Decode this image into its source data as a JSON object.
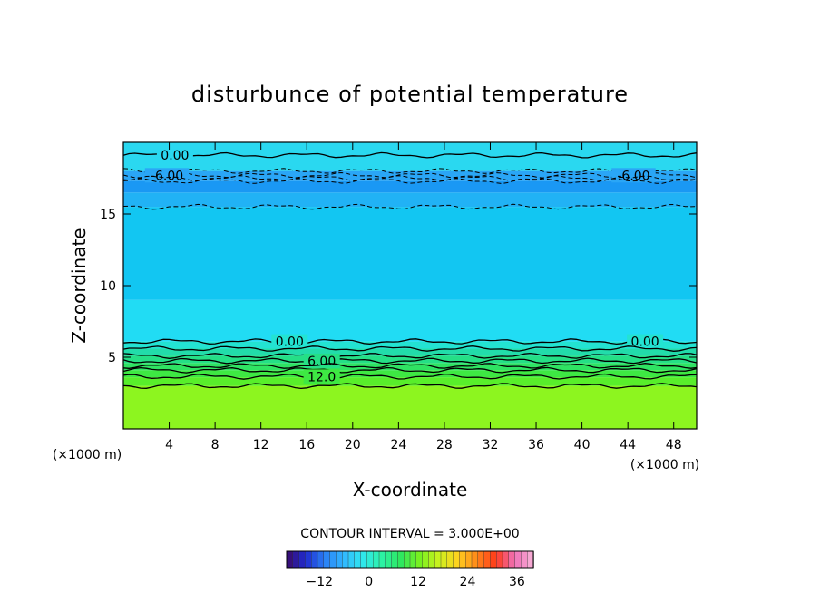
{
  "chart_data": {
    "type": "heatmap",
    "title": "disturbunce of potential temperature",
    "xlabel": "X-coordinate",
    "ylabel": "Z-coordinate",
    "x_unit": "(×1000 m)",
    "x_unit_right": "(×1000 m)",
    "xlim": [
      0,
      50
    ],
    "ylim": [
      0,
      20
    ],
    "x_ticks": [
      4,
      8,
      12,
      16,
      20,
      24,
      28,
      32,
      36,
      40,
      44,
      48
    ],
    "y_ticks": [
      5,
      10,
      15
    ],
    "contour_interval_text": "CONTOUR INTERVAL = 3.000E+00",
    "contour_interval": 3.0,
    "colorbar": {
      "min": -20,
      "max": 40,
      "ticks": [
        -12,
        0,
        12,
        24,
        36
      ],
      "colors": [
        "#3b0a6a",
        "#1f2bd0",
        "#2a7ff5",
        "#31b8ff",
        "#2fe7ef",
        "#2cf2a6",
        "#2ee860",
        "#77f020",
        "#c9f21e",
        "#ffd21f",
        "#ff8a1a",
        "#ff3b1a",
        "#f06fb7",
        "#f7b3d8"
      ]
    },
    "bands": [
      {
        "z0": 0.0,
        "z1": 3.0,
        "value": 19.5,
        "color": "#8df51f"
      },
      {
        "z0": 3.0,
        "z1": 3.6,
        "value": 15.0,
        "color": "#58ee2b"
      },
      {
        "z0": 3.6,
        "z1": 4.1,
        "value": 12.0,
        "color": "#3ee843"
      },
      {
        "z0": 4.1,
        "z1": 4.6,
        "value": 10.5,
        "color": "#2fe363"
      },
      {
        "z0": 4.6,
        "z1": 5.1,
        "value": 7.5,
        "color": "#25df86"
      },
      {
        "z0": 5.1,
        "z1": 5.6,
        "value": 4.5,
        "color": "#22dcaa"
      },
      {
        "z0": 5.6,
        "z1": 6.1,
        "value": 1.5,
        "color": "#23e3d2"
      },
      {
        "z0": 6.1,
        "z1": 9.0,
        "value": -1.5,
        "color": "#21dcf4"
      },
      {
        "z0": 9.0,
        "z1": 15.5,
        "value": -4.5,
        "color": "#12c6f2"
      },
      {
        "z0": 15.5,
        "z1": 16.5,
        "value": -7.5,
        "color": "#21b2f5"
      },
      {
        "z0": 16.5,
        "z1": 17.3,
        "value": -10.5,
        "color": "#1a98f4"
      },
      {
        "z0": 17.3,
        "z1": 18.0,
        "value": -7.5,
        "color": "#2aa6f6"
      },
      {
        "z0": 18.0,
        "z1": 20.0,
        "value": -1.5,
        "color": "#2ad8f0"
      }
    ],
    "contour_lines": [
      {
        "z": 19.1,
        "style": "solid",
        "label": "0.00",
        "label_x": [
          4.5
        ]
      },
      {
        "z": 18.0,
        "style": "dashed",
        "label": "",
        "label_x": []
      },
      {
        "z": 17.7,
        "style": "dashed",
        "label": "-6.00",
        "label_x": [
          3.8,
          44.5
        ]
      },
      {
        "z": 17.5,
        "style": "dashed",
        "label": "",
        "label_x": []
      },
      {
        "z": 17.3,
        "style": "dashed",
        "label": "",
        "label_x": []
      },
      {
        "z": 15.5,
        "style": "dashed",
        "label": "",
        "label_x": []
      },
      {
        "z": 6.1,
        "style": "solid",
        "label": "0.00",
        "label_x": [
          14.5,
          45.5
        ]
      },
      {
        "z": 5.6,
        "style": "solid",
        "label": "",
        "label_x": []
      },
      {
        "z": 5.1,
        "style": "solid",
        "label": "",
        "label_x": []
      },
      {
        "z": 4.75,
        "style": "solid",
        "label": "6.00",
        "label_x": [
          17.3
        ]
      },
      {
        "z": 4.4,
        "style": "solid",
        "label": "",
        "label_x": []
      },
      {
        "z": 4.1,
        "style": "solid",
        "label": "",
        "label_x": []
      },
      {
        "z": 3.65,
        "style": "solid",
        "label": "12.0",
        "label_x": [
          17.3
        ]
      },
      {
        "z": 3.0,
        "style": "solid",
        "label": "",
        "label_x": []
      }
    ]
  }
}
